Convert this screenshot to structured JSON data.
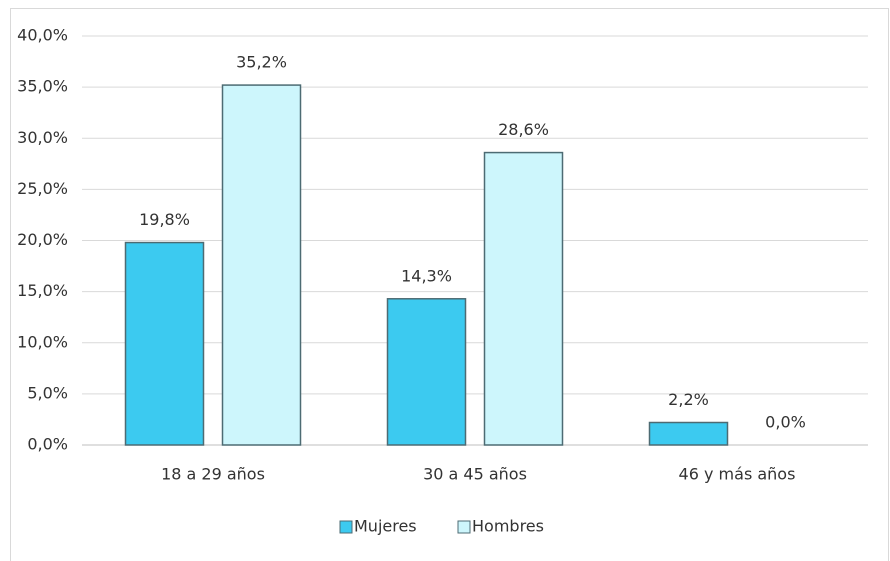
{
  "chart_data": {
    "type": "bar",
    "categories": [
      "18 a 29 años",
      "30 a 45 años",
      "46 y más años"
    ],
    "series": [
      {
        "name": "Mujeres",
        "color": "#3ccaf0",
        "values": [
          19.8,
          14.3,
          2.2
        ],
        "value_labels": [
          "19,8%",
          "14,3%",
          "2,2%"
        ]
      },
      {
        "name": "Hombres",
        "color": "#cdf6fc",
        "values": [
          35.2,
          28.6,
          0.0
        ],
        "value_labels": [
          "35,2%",
          "28,6%",
          "0,0%"
        ]
      }
    ],
    "ylim": [
      0,
      40
    ],
    "yticks": [
      {
        "value": 0,
        "label": "0,0%"
      },
      {
        "value": 5,
        "label": "5,0%"
      },
      {
        "value": 10,
        "label": "10,0%"
      },
      {
        "value": 15,
        "label": "15,0%"
      },
      {
        "value": 20,
        "label": "20,0%"
      },
      {
        "value": 25,
        "label": "25,0%"
      },
      {
        "value": 30,
        "label": "30,0%"
      },
      {
        "value": 35,
        "label": "35,0%"
      },
      {
        "value": 40,
        "label": "40,0%"
      }
    ],
    "grid": true,
    "legend": "bottom"
  }
}
